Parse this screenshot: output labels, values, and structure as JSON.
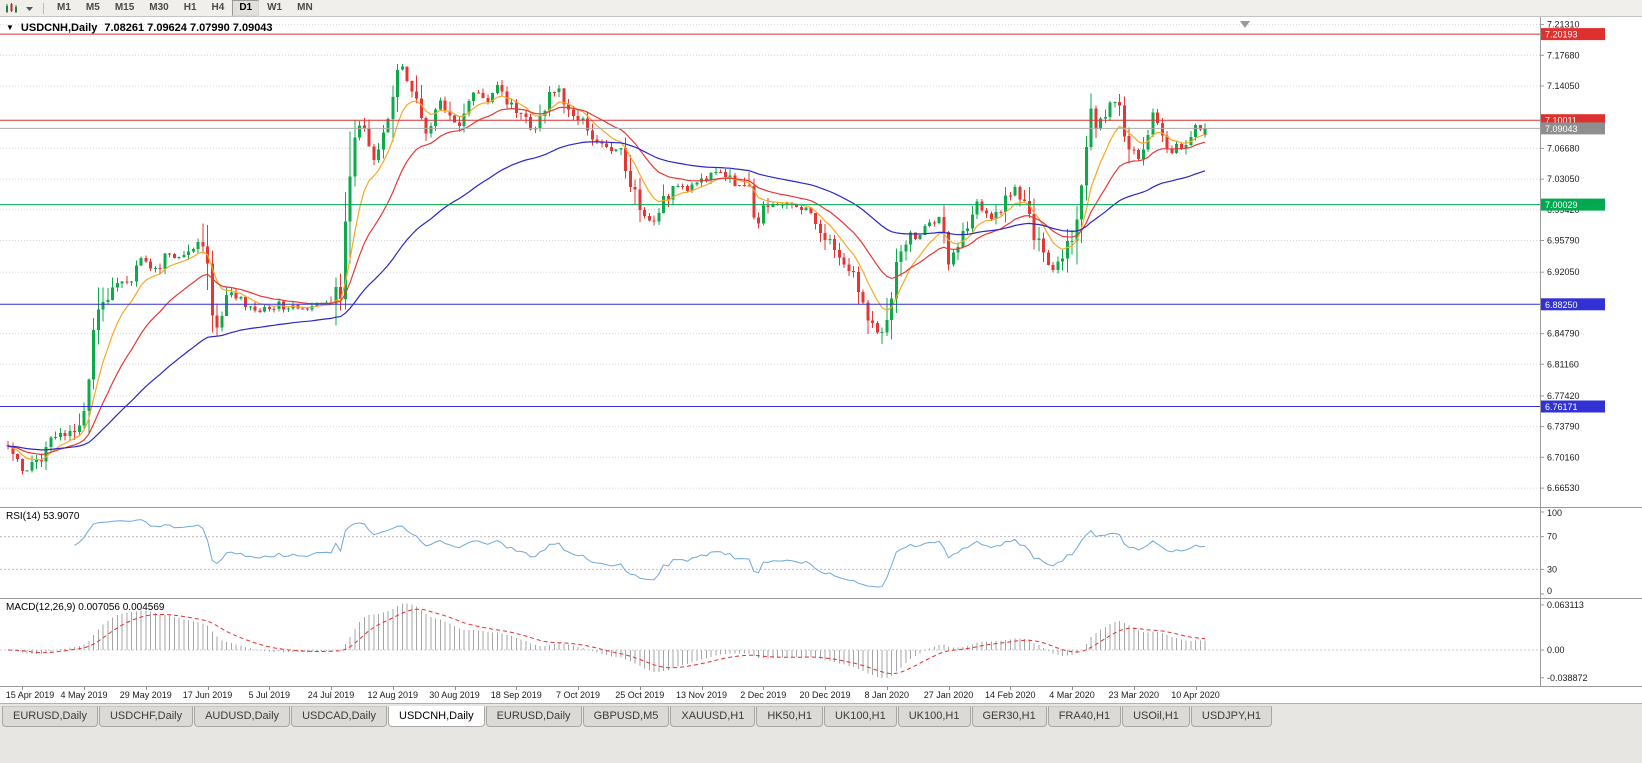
{
  "toolbar": {
    "timeframes": [
      "M1",
      "M5",
      "M15",
      "M30",
      "H1",
      "H4",
      "D1",
      "W1",
      "MN"
    ],
    "active_timeframe": "D1",
    "icons": [
      "chart-type-icon",
      "chevron-down-icon"
    ]
  },
  "chart": {
    "collapse_glyph": "▼",
    "symbol_title": "USDCNH,Daily",
    "ohlc_text": "7.08261 7.09624 7.07990 7.09043"
  },
  "price_axis": {
    "ticks": [
      7.2131,
      7.1768,
      7.1405,
      7.0668,
      7.0305,
      6.9942,
      6.9579,
      6.9205,
      6.8479,
      6.8116,
      6.7742,
      6.7379,
      6.7016,
      6.6653
    ],
    "tags": [
      {
        "value": 7.20193,
        "color": "#DF3030",
        "kind": "level"
      },
      {
        "value": 7.10011,
        "color": "#DF3030",
        "kind": "level"
      },
      {
        "value": 7.09043,
        "color": "#8E8E8E",
        "kind": "current"
      },
      {
        "value": 7.00029,
        "color": "#00A94F",
        "kind": "level"
      },
      {
        "value": 6.8825,
        "color": "#3131D6",
        "kind": "level"
      },
      {
        "value": 6.76171,
        "color": "#3131D6",
        "kind": "level"
      }
    ]
  },
  "rsi": {
    "label": "RSI(14) 53.9070",
    "period": 14,
    "levels": [
      100,
      70,
      30,
      0
    ],
    "color": "#6FA8DC"
  },
  "macd": {
    "label": "MACD(12,26,9) 0.007056 0.004569",
    "fast": 12,
    "slow": 26,
    "signal": 9,
    "levels": [
      {
        "label": "0.063113",
        "value": 0.063113
      },
      {
        "label": "0.00",
        "value": 0
      },
      {
        "label": "-0.038872",
        "value": -0.038872
      }
    ],
    "hist_color": "#A6A6A6",
    "signal_color": "#E03030"
  },
  "date_axis": {
    "labels": [
      "15 Apr 2019",
      "4 May 2019",
      "29 May 2019",
      "17 Jun 2019",
      "5 Jul 2019",
      "24 Jul 2019",
      "12 Aug 2019",
      "30 Aug 2019",
      "18 Sep 2019",
      "7 Oct 2019",
      "25 Oct 2019",
      "13 Nov 2019",
      "2 Dec 2019",
      "20 Dec 2019",
      "8 Jan 2020",
      "27 Jan 2020",
      "14 Feb 2020",
      "4 Mar 2020",
      "23 Mar 2020",
      "10 Apr 2020"
    ]
  },
  "tabs": [
    {
      "label": "EURUSD,Daily"
    },
    {
      "label": "USDCHF,Daily"
    },
    {
      "label": "AUDUSD,Daily"
    },
    {
      "label": "USDCAD,Daily"
    },
    {
      "label": "USDCNH,Daily",
      "active": true
    },
    {
      "label": "EURUSD,Daily"
    },
    {
      "label": "GBPUSD,M5"
    },
    {
      "label": "XAUUSD,H1"
    },
    {
      "label": "HK50,H1"
    },
    {
      "label": "UK100,H1"
    },
    {
      "label": "UK100,H1"
    },
    {
      "label": "GER30,H1"
    },
    {
      "label": "FRA40,H1"
    },
    {
      "label": "USOil,H1"
    },
    {
      "label": "USDJPY,H1"
    }
  ],
  "chart_data": {
    "type": "candlestick",
    "symbol": "USDCNH",
    "timeframe": "Daily",
    "candle_count": 253,
    "up_color": "#0FA94C",
    "down_color": "#E53535",
    "last_candle": {
      "open": 7.08261,
      "high": 7.09624,
      "low": 7.0799,
      "close": 7.09043
    },
    "horizontal_lines": [
      7.20193,
      7.10011,
      7.00029,
      6.8825,
      6.76171
    ],
    "moving_averages": [
      {
        "period": 8,
        "method": "ema",
        "color": "#F9A825"
      },
      {
        "period": 20,
        "method": "ema",
        "color": "#E53935"
      },
      {
        "period": 55,
        "method": "ema",
        "color": "#2828C8"
      }
    ],
    "price_path": [
      [
        0,
        6.712
      ],
      [
        2,
        6.695
      ],
      [
        3,
        6.681
      ],
      [
        5,
        6.69
      ],
      [
        7,
        6.703
      ],
      [
        9,
        6.72
      ],
      [
        11,
        6.726
      ],
      [
        13,
        6.731
      ],
      [
        15,
        6.741
      ],
      [
        16,
        6.758
      ],
      [
        17,
        6.79
      ],
      [
        18,
        6.842
      ],
      [
        19,
        6.868
      ],
      [
        20,
        6.88
      ],
      [
        22,
        6.902
      ],
      [
        24,
        6.91
      ],
      [
        26,
        6.914
      ],
      [
        28,
        6.938
      ],
      [
        30,
        6.922
      ],
      [
        32,
        6.93
      ],
      [
        34,
        6.945
      ],
      [
        36,
        6.936
      ],
      [
        38,
        6.948
      ],
      [
        40,
        6.955
      ],
      [
        42,
        6.928
      ],
      [
        43,
        6.864
      ],
      [
        44,
        6.852
      ],
      [
        45,
        6.876
      ],
      [
        47,
        6.898
      ],
      [
        49,
        6.886
      ],
      [
        51,
        6.879
      ],
      [
        53,
        6.878
      ],
      [
        55,
        6.873
      ],
      [
        57,
        6.882
      ],
      [
        59,
        6.877
      ],
      [
        61,
        6.88
      ],
      [
        63,
        6.876
      ],
      [
        65,
        6.881
      ],
      [
        67,
        6.886
      ],
      [
        69,
        6.89
      ],
      [
        70,
        6.898
      ],
      [
        71,
        6.985
      ],
      [
        72,
        7.048
      ],
      [
        73,
        7.086
      ],
      [
        74,
        7.098
      ],
      [
        75,
        7.096
      ],
      [
        76,
        7.062
      ],
      [
        77,
        7.055
      ],
      [
        78,
        7.06
      ],
      [
        79,
        7.078
      ],
      [
        80,
        7.098
      ],
      [
        81,
        7.13
      ],
      [
        82,
        7.158
      ],
      [
        83,
        7.162
      ],
      [
        84,
        7.15
      ],
      [
        85,
        7.143
      ],
      [
        86,
        7.136
      ],
      [
        87,
        7.105
      ],
      [
        88,
        7.082
      ],
      [
        89,
        7.095
      ],
      [
        90,
        7.112
      ],
      [
        91,
        7.126
      ],
      [
        92,
        7.115
      ],
      [
        93,
        7.1
      ],
      [
        94,
        7.096
      ],
      [
        95,
        7.098
      ],
      [
        96,
        7.11
      ],
      [
        97,
        7.12
      ],
      [
        98,
        7.128
      ],
      [
        99,
        7.134
      ],
      [
        100,
        7.13
      ],
      [
        101,
        7.123
      ],
      [
        102,
        7.135
      ],
      [
        103,
        7.143
      ],
      [
        104,
        7.13
      ],
      [
        105,
        7.125
      ],
      [
        106,
        7.119
      ],
      [
        108,
        7.11
      ],
      [
        110,
        7.086
      ],
      [
        112,
        7.1
      ],
      [
        114,
        7.126
      ],
      [
        115,
        7.135
      ],
      [
        116,
        7.138
      ],
      [
        117,
        7.12
      ],
      [
        118,
        7.112
      ],
      [
        119,
        7.105
      ],
      [
        120,
        7.1
      ],
      [
        121,
        7.097
      ],
      [
        122,
        7.085
      ],
      [
        123,
        7.076
      ],
      [
        124,
        7.072
      ],
      [
        125,
        7.07
      ],
      [
        126,
        7.072
      ],
      [
        127,
        7.068
      ],
      [
        128,
        7.064
      ],
      [
        129,
        7.06
      ],
      [
        130,
        7.048
      ],
      [
        131,
        7.03
      ],
      [
        132,
        7.01
      ],
      [
        133,
        6.998
      ],
      [
        134,
        6.99
      ],
      [
        135,
        6.982
      ],
      [
        136,
        6.976
      ],
      [
        137,
        6.988
      ],
      [
        138,
        7.003
      ],
      [
        139,
        7.012
      ],
      [
        140,
        7.017
      ],
      [
        141,
        7.019
      ],
      [
        143,
        7.02
      ],
      [
        145,
        7.024
      ],
      [
        147,
        7.03
      ],
      [
        149,
        7.039
      ],
      [
        150,
        7.042
      ],
      [
        151,
        7.035
      ],
      [
        153,
        7.026
      ],
      [
        155,
        7.028
      ],
      [
        156,
        7.031
      ],
      [
        157,
        6.984
      ],
      [
        158,
        6.975
      ],
      [
        159,
        6.998
      ],
      [
        160,
        7.003
      ],
      [
        161,
        7.004
      ],
      [
        163,
        7.0
      ],
      [
        165,
        6.997
      ],
      [
        167,
        6.994
      ],
      [
        169,
        6.99
      ],
      [
        170,
        6.982
      ],
      [
        171,
        6.97
      ],
      [
        172,
        6.963
      ],
      [
        173,
        6.957
      ],
      [
        174,
        6.948
      ],
      [
        175,
        6.94
      ],
      [
        176,
        6.934
      ],
      [
        177,
        6.927
      ],
      [
        178,
        6.915
      ],
      [
        179,
        6.9
      ],
      [
        180,
        6.885
      ],
      [
        181,
        6.87
      ],
      [
        182,
        6.857
      ],
      [
        183,
        6.846
      ],
      [
        184,
        6.855
      ],
      [
        185,
        6.872
      ],
      [
        186,
        6.9
      ],
      [
        187,
        6.927
      ],
      [
        188,
        6.945
      ],
      [
        189,
        6.957
      ],
      [
        190,
        6.962
      ],
      [
        191,
        6.965
      ],
      [
        192,
        6.97
      ],
      [
        193,
        6.974
      ],
      [
        194,
        6.977
      ],
      [
        195,
        6.981
      ],
      [
        196,
        6.993
      ],
      [
        197,
        6.965
      ],
      [
        198,
        6.933
      ],
      [
        199,
        6.942
      ],
      [
        200,
        6.957
      ],
      [
        201,
        6.968
      ],
      [
        202,
        6.976
      ],
      [
        203,
        6.988
      ],
      [
        204,
        6.999
      ],
      [
        205,
        6.995
      ],
      [
        206,
        6.99
      ],
      [
        207,
        6.987
      ],
      [
        208,
        6.986
      ],
      [
        209,
        6.997
      ],
      [
        210,
        7.008
      ],
      [
        211,
        7.016
      ],
      [
        212,
        7.02
      ],
      [
        213,
        7.01
      ],
      [
        214,
        6.996
      ],
      [
        215,
        6.982
      ],
      [
        216,
        6.967
      ],
      [
        217,
        6.953
      ],
      [
        218,
        6.94
      ],
      [
        219,
        6.929
      ],
      [
        220,
        6.92
      ],
      [
        221,
        6.929
      ],
      [
        222,
        6.94
      ],
      [
        223,
        6.953
      ],
      [
        224,
        6.965
      ],
      [
        225,
        6.98
      ],
      [
        226,
        7.018
      ],
      [
        227,
        7.076
      ],
      [
        228,
        7.11
      ],
      [
        229,
        7.09
      ],
      [
        230,
        7.098
      ],
      [
        231,
        7.107
      ],
      [
        232,
        7.12
      ],
      [
        233,
        7.125
      ],
      [
        234,
        7.113
      ],
      [
        235,
        7.09
      ],
      [
        236,
        7.072
      ],
      [
        237,
        7.064
      ],
      [
        238,
        7.06
      ],
      [
        239,
        7.073
      ],
      [
        240,
        7.089
      ],
      [
        241,
        7.106
      ],
      [
        242,
        7.094
      ],
      [
        243,
        7.078
      ],
      [
        244,
        7.07
      ],
      [
        245,
        7.064
      ],
      [
        246,
        7.068
      ],
      [
        247,
        7.07
      ],
      [
        248,
        7.077
      ],
      [
        249,
        7.084
      ],
      [
        250,
        7.09
      ],
      [
        251,
        7.094
      ],
      [
        252,
        7.0904
      ]
    ]
  }
}
